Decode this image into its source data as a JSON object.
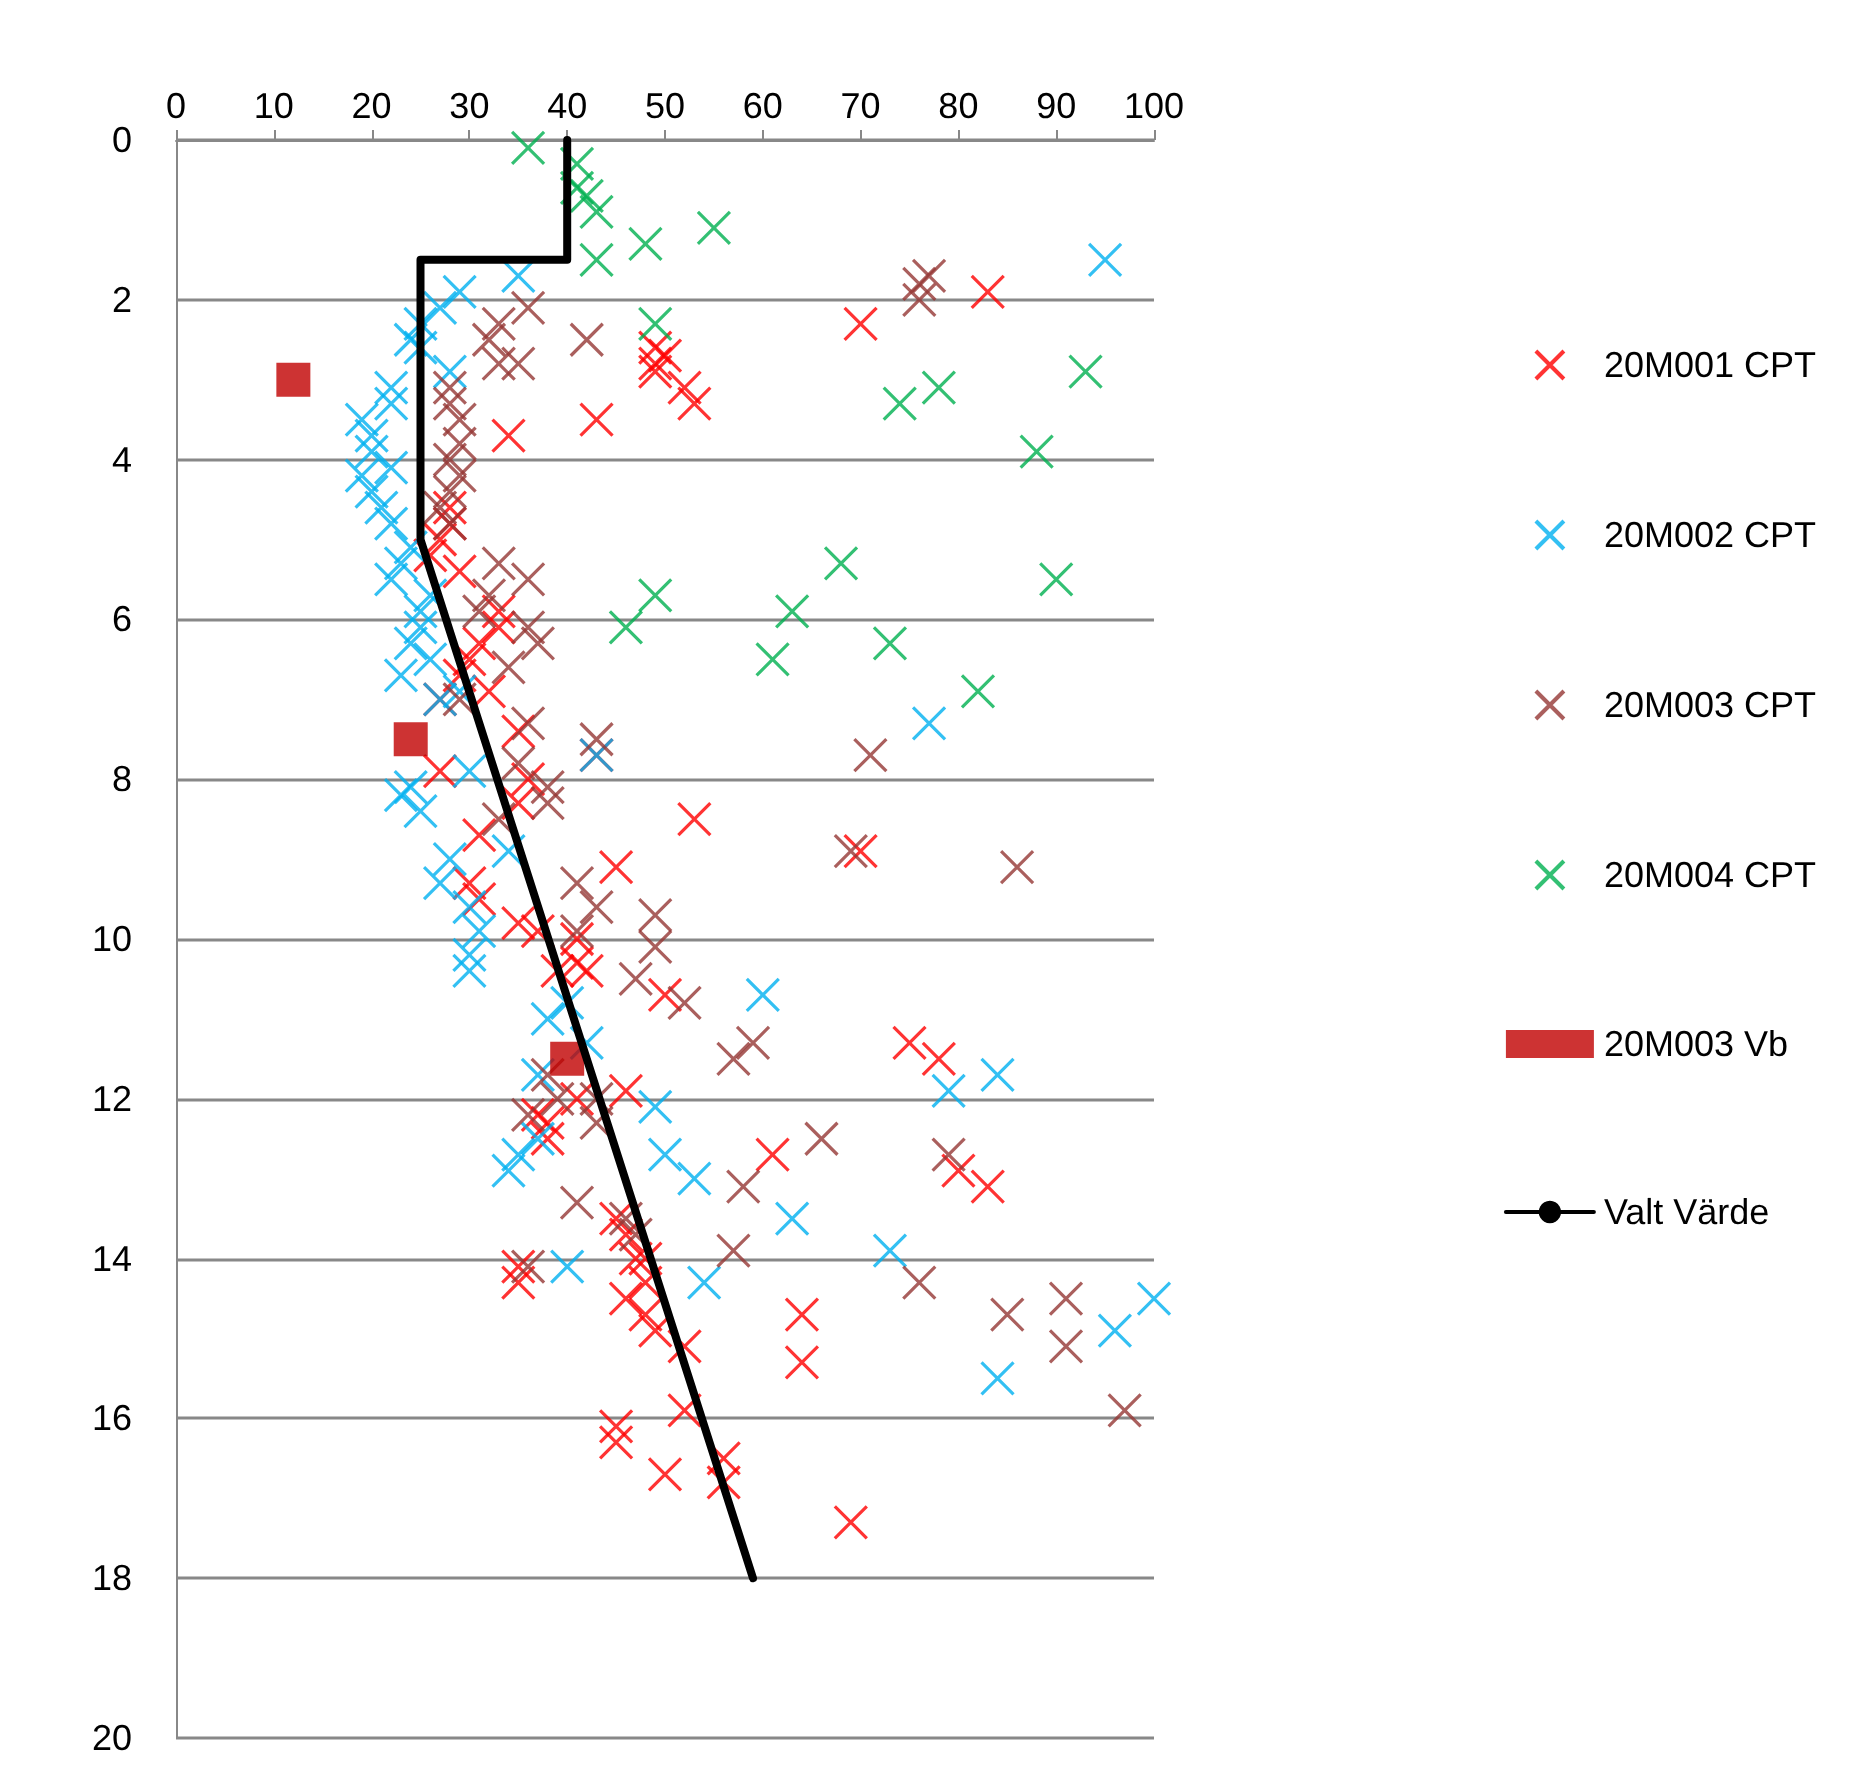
{
  "chart_data": {
    "type": "scatter",
    "xlim": [
      0,
      100
    ],
    "xticks": [
      0,
      10,
      20,
      30,
      40,
      50,
      60,
      70,
      80,
      90,
      100
    ],
    "ylim": [
      20,
      0
    ],
    "yticks": [
      0,
      2,
      4,
      6,
      8,
      10,
      12,
      14,
      16,
      18,
      20
    ],
    "grid": "y",
    "legend": "right",
    "marker": "cross",
    "series": [
      {
        "name": "20M001 CPT",
        "color": "#ff0000",
        "x": [
          70,
          83,
          49,
          49,
          50,
          49,
          52,
          53,
          43,
          34,
          28,
          28,
          27,
          26,
          29,
          33,
          33,
          31,
          30,
          29,
          32,
          27,
          35,
          27,
          43,
          36,
          35,
          53,
          70,
          31,
          45,
          31,
          30,
          35,
          37,
          41,
          41,
          42,
          39,
          50,
          75,
          78,
          80,
          83,
          38,
          38,
          46,
          61,
          35,
          35,
          45,
          46,
          47,
          48,
          48,
          46,
          48,
          49,
          52,
          64,
          64,
          52,
          45,
          45,
          50,
          56,
          56,
          69,
          37,
          41
        ],
        "values": [
          2.3,
          1.9,
          2.6,
          2.8,
          2.7,
          2.9,
          3.1,
          3.3,
          3.5,
          3.7,
          4.6,
          4.8,
          5.0,
          5.2,
          5.4,
          5.9,
          6.1,
          6.3,
          6.5,
          6.7,
          6.9,
          7.0,
          7.4,
          7.9,
          7.7,
          8.0,
          8.3,
          8.5,
          8.9,
          8.7,
          9.1,
          9.5,
          9.3,
          9.8,
          9.9,
          10.0,
          10.3,
          10.4,
          10.4,
          10.7,
          11.3,
          11.5,
          12.9,
          13.1,
          12.3,
          12.5,
          11.9,
          12.7,
          14.3,
          14.1,
          13.5,
          13.7,
          14.0,
          14.0,
          14.3,
          14.5,
          14.7,
          14.9,
          15.1,
          14.7,
          15.3,
          15.9,
          16.1,
          16.3,
          16.7,
          16.5,
          16.8,
          17.3,
          12.2,
          12.0
        ]
      },
      {
        "name": "20M002 CPT",
        "color": "#00b0f0",
        "x": [
          95,
          35,
          29,
          27,
          25,
          24,
          25,
          28,
          22,
          22,
          19,
          20,
          20,
          22,
          19,
          20,
          21,
          22,
          24,
          23,
          22,
          26,
          25,
          25,
          24,
          26,
          23,
          29,
          27,
          77,
          43,
          24,
          23,
          25,
          30,
          34,
          28,
          27,
          30,
          31,
          30,
          30,
          38,
          40,
          60,
          42,
          79,
          84,
          49,
          37,
          35,
          34,
          50,
          53,
          63,
          73,
          40,
          54,
          84,
          96,
          100,
          37
        ],
        "values": [
          1.5,
          1.7,
          1.9,
          2.1,
          2.3,
          2.5,
          2.6,
          2.9,
          3.1,
          3.3,
          3.5,
          3.7,
          3.9,
          4.1,
          4.2,
          4.4,
          4.6,
          4.8,
          5.1,
          5.3,
          5.5,
          5.7,
          5.9,
          6.1,
          6.3,
          6.5,
          6.7,
          6.9,
          7.0,
          7.3,
          7.7,
          8.1,
          8.2,
          8.4,
          7.9,
          8.9,
          9.0,
          9.3,
          9.6,
          9.9,
          10.2,
          10.4,
          11.0,
          10.8,
          10.7,
          11.3,
          11.9,
          11.7,
          12.1,
          12.5,
          12.7,
          12.9,
          12.7,
          13.0,
          13.5,
          13.9,
          14.1,
          14.3,
          15.5,
          14.9,
          14.5,
          11.7
        ]
      },
      {
        "name": "20M003 CPT",
        "color": "#953735",
        "x": [
          76,
          77,
          76,
          36,
          33,
          42,
          32,
          33,
          35,
          28,
          28,
          29,
          29,
          28,
          29,
          28,
          27,
          28,
          33,
          36,
          32,
          31,
          36,
          37,
          34,
          29,
          36,
          43,
          71,
          69,
          86,
          35,
          38,
          38,
          33,
          41,
          43,
          41,
          49,
          47,
          49,
          52,
          57,
          59,
          38,
          39,
          36,
          43,
          58,
          66,
          79,
          41,
          46,
          57,
          36,
          47,
          76,
          85,
          91,
          91,
          97,
          43
        ],
        "values": [
          1.8,
          1.7,
          2.0,
          2.1,
          2.3,
          2.5,
          2.5,
          2.8,
          2.8,
          3.1,
          3.3,
          3.5,
          3.8,
          4.0,
          4.2,
          4.4,
          4.6,
          4.8,
          5.3,
          5.5,
          5.7,
          5.9,
          6.1,
          6.3,
          6.6,
          7.0,
          7.3,
          7.5,
          7.7,
          8.9,
          9.1,
          7.8,
          8.1,
          8.3,
          8.5,
          9.3,
          9.6,
          9.9,
          9.7,
          10.5,
          10.1,
          10.8,
          11.5,
          11.3,
          11.7,
          12.0,
          12.2,
          12.0,
          13.1,
          12.5,
          12.7,
          13.3,
          13.5,
          13.9,
          14.1,
          13.7,
          14.3,
          14.7,
          14.5,
          15.1,
          15.9,
          12.3
        ]
      },
      {
        "name": "20M004 CPT",
        "color": "#00b050",
        "x": [
          36,
          41,
          41,
          42,
          43,
          43,
          48,
          55,
          49,
          74,
          78,
          93,
          88,
          68,
          90,
          63,
          49,
          46,
          61,
          73,
          82
        ],
        "values": [
          0.1,
          0.3,
          0.6,
          0.7,
          0.9,
          1.5,
          1.3,
          1.1,
          2.3,
          3.3,
          3.1,
          2.9,
          3.9,
          5.3,
          5.5,
          5.9,
          5.7,
          6.1,
          6.5,
          6.3,
          6.9
        ]
      },
      {
        "name": "20M003 Vb",
        "color": "#c00000",
        "marker": "square",
        "x": [
          12,
          24,
          40
        ],
        "values": [
          3.0,
          7.5,
          11.5
        ]
      },
      {
        "name": "Valt Värde",
        "type": "line",
        "color": "#000000",
        "marker": "none",
        "line_style": "solid",
        "x": [
          40,
          40,
          25,
          25,
          59
        ],
        "values": [
          0,
          1.5,
          1.5,
          5,
          18
        ]
      }
    ]
  }
}
